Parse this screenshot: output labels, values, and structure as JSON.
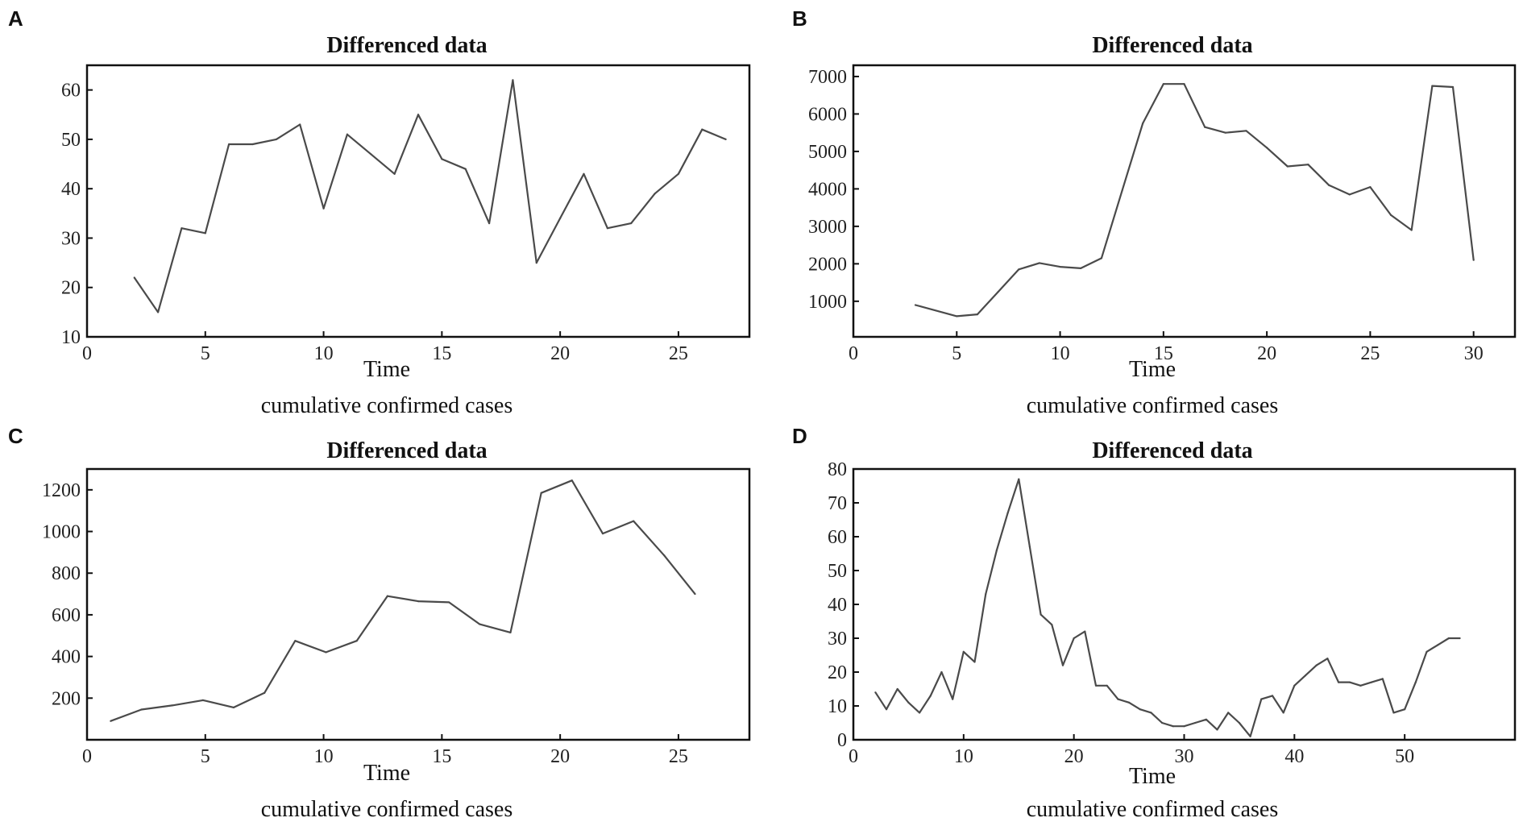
{
  "chart_data": [
    {
      "panel": "A",
      "type": "line",
      "title": "Differenced data",
      "xlabel": "Time",
      "caption": "cumulative confirmed cases",
      "ylabel": "",
      "xlim": [
        0,
        28
      ],
      "ylim": [
        10,
        65
      ],
      "xticks": [
        0,
        5,
        10,
        15,
        20,
        25
      ],
      "yticks": [
        10,
        20,
        30,
        40,
        50,
        60
      ],
      "series": [
        {
          "name": "Differenced data",
          "x": [
            2,
            3,
            4,
            5,
            6,
            7,
            8,
            9,
            10,
            11,
            12,
            13,
            14,
            15,
            16,
            17,
            18,
            19,
            20,
            21,
            22,
            23,
            24,
            25,
            26,
            27
          ],
          "values": [
            22,
            15,
            32,
            31,
            49,
            49,
            50,
            53,
            36,
            51,
            47,
            43,
            55,
            46,
            44,
            33,
            62,
            25,
            34,
            43,
            32,
            33,
            39,
            43,
            52,
            50
          ]
        }
      ]
    },
    {
      "panel": "B",
      "type": "line",
      "title": "Differenced data",
      "xlabel": "Time",
      "caption": "cumulative confirmed cases",
      "ylabel": "",
      "xlim": [
        0,
        32
      ],
      "ylim": [
        50,
        7300
      ],
      "xticks": [
        0,
        5,
        10,
        15,
        20,
        25,
        30
      ],
      "yticks": [
        1000,
        2000,
        3000,
        4000,
        5000,
        6000,
        7000
      ],
      "series": [
        {
          "name": "Differenced data",
          "x": [
            3,
            5,
            6,
            7,
            8,
            9,
            10,
            11,
            12,
            13,
            14,
            15,
            16,
            17,
            18,
            19,
            20,
            21,
            22,
            23,
            24,
            25,
            26,
            27,
            28,
            29,
            30
          ],
          "values": [
            900,
            600,
            650,
            1250,
            1850,
            2020,
            1920,
            1880,
            2150,
            3950,
            5750,
            6800,
            6800,
            5650,
            5500,
            5550,
            5100,
            4600,
            4650,
            4100,
            3850,
            4050,
            3300,
            2900,
            6750,
            6720,
            2100
          ]
        }
      ]
    },
    {
      "panel": "C",
      "type": "line",
      "title": "Differenced data",
      "xlabel": "Time",
      "caption": "cumulative confirmed cases",
      "ylabel": "",
      "xlim": [
        0,
        28
      ],
      "ylim": [
        0,
        1300
      ],
      "xticks": [
        0,
        5,
        10,
        15,
        20,
        25
      ],
      "yticks": [
        200,
        400,
        600,
        800,
        1000,
        1200
      ],
      "series": [
        {
          "name": "Differenced data",
          "x": [
            1,
            2.3,
            3.6,
            4.9,
            6.2,
            7.5,
            8.8,
            10.1,
            11.4,
            12.7,
            14,
            15.3,
            16.6,
            17.9,
            19.2,
            20.5,
            21.8,
            23.1,
            24.4,
            25.7
          ],
          "values": [
            90,
            145,
            165,
            190,
            155,
            225,
            475,
            420,
            475,
            690,
            665,
            660,
            555,
            515,
            1185,
            1245,
            990,
            1050,
            885,
            700
          ]
        }
      ]
    },
    {
      "panel": "D",
      "type": "line",
      "title": "Differenced data",
      "xlabel": "Time",
      "caption": "cumulative confirmed cases",
      "ylabel": "",
      "xlim": [
        0,
        60
      ],
      "ylim": [
        0,
        80
      ],
      "xticks": [
        0,
        10,
        20,
        30,
        40,
        50
      ],
      "yticks": [
        0,
        10,
        20,
        30,
        40,
        50,
        60,
        70,
        80
      ],
      "series": [
        {
          "name": "Differenced data",
          "x": [
            2,
            3,
            4,
            5,
            6,
            7,
            8,
            9,
            10,
            11,
            12,
            13,
            14,
            15,
            16,
            17,
            18,
            19,
            20,
            21,
            22,
            23,
            24,
            25,
            26,
            27,
            28,
            29,
            30,
            31,
            32,
            33,
            34,
            35,
            36,
            37,
            38,
            39,
            40,
            41,
            42,
            43,
            44,
            45,
            46,
            47,
            48,
            49,
            50,
            51,
            52,
            53,
            54,
            55
          ],
          "values": [
            14,
            9,
            15,
            11,
            8,
            13,
            20,
            12,
            26,
            23,
            43,
            56,
            67,
            77,
            57,
            37,
            34,
            22,
            30,
            32,
            16,
            16,
            12,
            11,
            9,
            8,
            5,
            4,
            4,
            5,
            6,
            3,
            8,
            5,
            1,
            12,
            13,
            8,
            16,
            19,
            22,
            24,
            17,
            17,
            16,
            17,
            18,
            8,
            9,
            17,
            26,
            28,
            30,
            30
          ]
        }
      ]
    }
  ]
}
